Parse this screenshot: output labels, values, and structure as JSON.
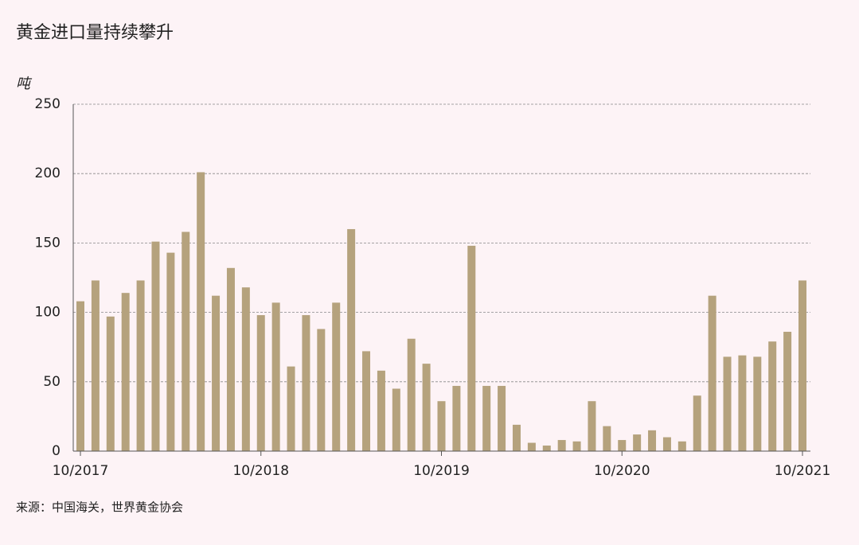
{
  "chart_data": {
    "type": "bar",
    "title": "黄金进口量持续攀升",
    "y_label": "吨",
    "source": "来源：中国海关，世界黄金协会",
    "categories": [
      "10/2017",
      null,
      null,
      null,
      null,
      null,
      null,
      null,
      null,
      null,
      null,
      null,
      "10/2018",
      null,
      null,
      null,
      null,
      null,
      null,
      null,
      null,
      null,
      null,
      null,
      "10/2019",
      null,
      null,
      null,
      null,
      null,
      null,
      null,
      null,
      null,
      null,
      null,
      "10/2020",
      null,
      null,
      null,
      null,
      null,
      null,
      null,
      null,
      null,
      null,
      null,
      "10/2021"
    ],
    "values": [
      108,
      123,
      97,
      114,
      123,
      151,
      143,
      158,
      201,
      112,
      132,
      118,
      98,
      107,
      61,
      98,
      88,
      107,
      160,
      72,
      58,
      45,
      81,
      63,
      36,
      47,
      148,
      47,
      47,
      19,
      6,
      4,
      8,
      7,
      36,
      18,
      8,
      12,
      15,
      10,
      7,
      40,
      112,
      68,
      69,
      68,
      79,
      86,
      123
    ],
    "color": "#b5a27d",
    "ylim": [
      0,
      250
    ],
    "yticks": [
      0,
      50,
      100,
      150,
      200,
      250
    ],
    "grid": true
  }
}
